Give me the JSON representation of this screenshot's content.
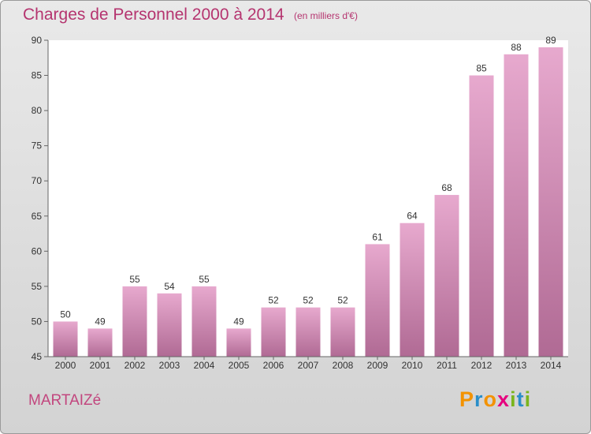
{
  "title": "Charges de Personnel 2000 à 2014",
  "subtitle": "(en milliers d'€)",
  "commune": "MARTAIZé",
  "logo": {
    "letters": [
      "P",
      "r",
      "o",
      "x",
      "i",
      "t",
      "i"
    ],
    "colors": [
      "#f39200",
      "#2a8ec9",
      "#f39200",
      "#e6007e",
      "#7ab51d",
      "#2a8ec9",
      "#7ab51d"
    ]
  },
  "colors": {
    "accent": "#b5346f",
    "bar_top": "#e7a9ce",
    "bar_bottom": "#b06a94"
  },
  "chart_data": {
    "type": "bar",
    "categories": [
      "2000",
      "2001",
      "2002",
      "2003",
      "2004",
      "2005",
      "2006",
      "2007",
      "2008",
      "2009",
      "2010",
      "2011",
      "2012",
      "2013",
      "2014"
    ],
    "values": [
      50,
      49,
      55,
      54,
      55,
      49,
      52,
      52,
      52,
      61,
      64,
      68,
      85,
      88,
      89
    ],
    "ylim": [
      45,
      90
    ],
    "yticks": [
      45,
      50,
      55,
      60,
      65,
      70,
      75,
      80,
      85,
      90
    ],
    "grid": false,
    "title": "Charges de Personnel 2000 à 2014",
    "xlabel": "",
    "ylabel": ""
  }
}
